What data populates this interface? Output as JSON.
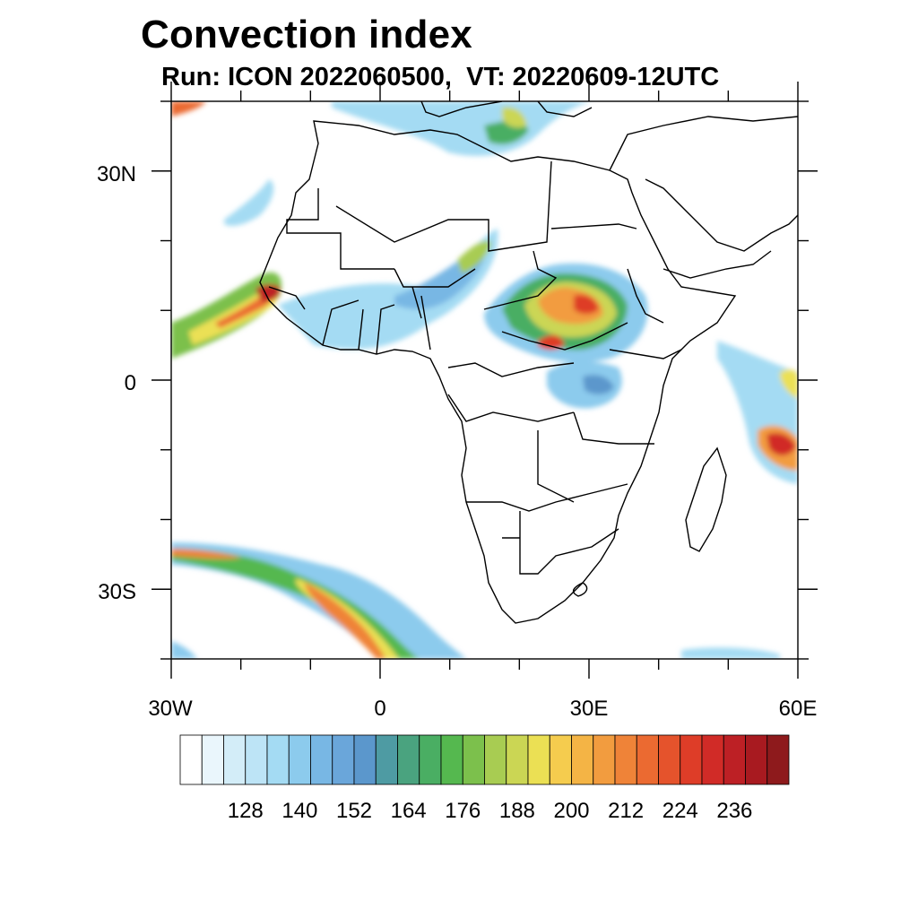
{
  "title": "Convection index",
  "subtitle": "Run: ICON 2022060500,  VT: 20220609-12UTC",
  "map": {
    "lon_range": [
      -30,
      60
    ],
    "lat_range": [
      -40,
      40
    ],
    "x_tick_labels": [
      "30W",
      "0",
      "30E",
      "60E"
    ],
    "y_tick_labels": [
      "30N",
      "0",
      "30S"
    ]
  },
  "colorbar": {
    "colors": [
      "#ffffff",
      "#eaf6fc",
      "#d3edf8",
      "#bde4f6",
      "#a4dbf3",
      "#8ccbed",
      "#78b7e4",
      "#6aa6da",
      "#5b97cc",
      "#4e9ba3",
      "#4aa37f",
      "#4aae63",
      "#55b84f",
      "#7cc04c",
      "#a8cc52",
      "#cbd654",
      "#ebe054",
      "#f5cc4e",
      "#f4b445",
      "#f29c3f",
      "#ef8338",
      "#eb6a31",
      "#e5532c",
      "#de3d28",
      "#d12b27",
      "#bd2025",
      "#a81a20",
      "#8e1a1c"
    ],
    "labels": [
      "128",
      "140",
      "152",
      "164",
      "176",
      "188",
      "200",
      "212",
      "224",
      "236"
    ]
  }
}
